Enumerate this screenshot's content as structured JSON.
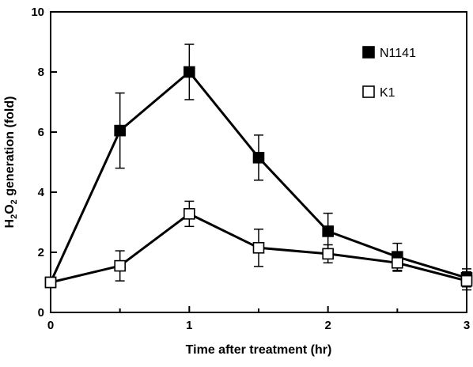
{
  "chart_data": {
    "type": "line",
    "title": "",
    "xlabel": "Time after treatment (hr)",
    "ylabel": {
      "prefix": "H",
      "sub1": "2",
      "mid": "O",
      "sub2": "2",
      "suffix": " generation (fold)"
    },
    "xlim": [
      0,
      3
    ],
    "ylim": [
      0,
      10
    ],
    "xticks": [
      0,
      1,
      2,
      3
    ],
    "xtick_labels": [
      "0",
      "1",
      "2",
      "3"
    ],
    "xminor": [
      0.5,
      1.5,
      2.5
    ],
    "yticks": [
      0,
      2,
      4,
      6,
      8,
      10
    ],
    "ytick_labels": [
      "0",
      "2",
      "4",
      "6",
      "8",
      "10"
    ],
    "grid": false,
    "legend_position": "top-right",
    "series": [
      {
        "name": "N1141",
        "marker": "filled-square",
        "color": "#000000",
        "x": [
          0,
          0.5,
          1,
          1.5,
          2,
          2.5,
          3
        ],
        "y": [
          1.0,
          6.05,
          8.0,
          5.15,
          2.7,
          1.85,
          1.15
        ],
        "err": [
          0,
          1.25,
          0.92,
          0.75,
          0.6,
          0.45,
          0.3
        ]
      },
      {
        "name": "K1",
        "marker": "open-square",
        "color": "#000000",
        "x": [
          0,
          0.5,
          1,
          1.5,
          2,
          2.5,
          3
        ],
        "y": [
          1.0,
          1.55,
          3.28,
          2.15,
          1.95,
          1.65,
          1.05
        ],
        "err": [
          0,
          0.5,
          0.42,
          0.62,
          0.3,
          0.28,
          0.3
        ]
      }
    ]
  }
}
